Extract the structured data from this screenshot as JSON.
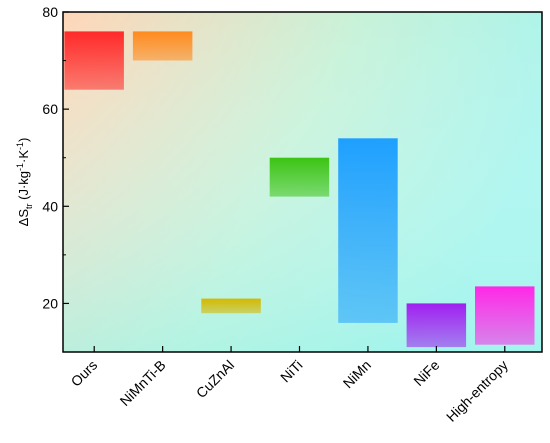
{
  "chart_data": {
    "type": "bar",
    "subtype": "floating-range",
    "categories": [
      "Ours",
      "NiMnTi-B",
      "CuZnAl",
      "NiTi",
      "NiMn",
      "NiFe",
      "High-entropy"
    ],
    "ranges": [
      {
        "category": "Ours",
        "low": 64,
        "high": 76,
        "color": "#ff2a2a"
      },
      {
        "category": "NiMnTi-B",
        "low": 70,
        "high": 76,
        "color": "#ff8a1e"
      },
      {
        "category": "CuZnAl",
        "low": 18,
        "high": 21,
        "color": "#d4b800"
      },
      {
        "category": "NiTi",
        "low": 42,
        "high": 50,
        "color": "#3cc414"
      },
      {
        "category": "NiMn",
        "low": 16,
        "high": 54,
        "color": "#1ea0ff"
      },
      {
        "category": "NiFe",
        "low": 11,
        "high": 20,
        "color": "#a020f0"
      },
      {
        "category": "High-entropy",
        "low": 11.5,
        "high": 23.5,
        "color": "#ff28e8"
      }
    ],
    "ylabel": {
      "prefix": "ΔS",
      "sub": "tr",
      "mid": " (J·kg",
      "sup1": "-1",
      "mid2": "·K",
      "sup2": "-1",
      "suffix": ")"
    },
    "ylim": [
      10,
      80
    ],
    "yticks": [
      "20",
      "40",
      "60",
      "80"
    ],
    "grid": false,
    "legend": "none",
    "background": {
      "from": "#ffd9b8",
      "to": "#a8f5ec"
    }
  }
}
